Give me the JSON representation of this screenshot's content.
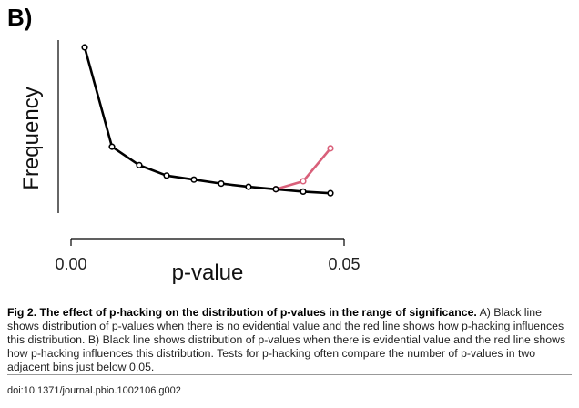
{
  "panel_label": "B)",
  "chart_data": {
    "type": "line",
    "title": "",
    "xlabel": "p-value",
    "ylabel": "Frequency",
    "x_ticks": [
      {
        "value": 0.0,
        "label": "0.00"
      },
      {
        "value": 0.05,
        "label": "0.05"
      }
    ],
    "xlim": [
      0.0,
      0.05
    ],
    "ylim": [
      0,
      1
    ],
    "grid": false,
    "series": [
      {
        "color": "#000000",
        "x": [
          0.0025,
          0.0075,
          0.0125,
          0.0175,
          0.0225,
          0.0275,
          0.0325,
          0.0375,
          0.0425,
          0.0475
        ],
        "y": [
          1.0,
          0.38,
          0.265,
          0.2,
          0.175,
          0.15,
          0.13,
          0.115,
          0.1,
          0.09
        ]
      },
      {
        "color": "#d9607a",
        "x": [
          0.0375,
          0.0425,
          0.0475
        ],
        "y": [
          0.115,
          0.165,
          0.37
        ]
      }
    ]
  },
  "caption": {
    "bold": "Fig 2. The effect of p-hacking on the distribution of p-values in the range of significance.",
    "text": " A) Black line shows distribution of p-values when there is no evidential value and the red line shows how p-hacking influences this distribution. B) Black line shows distribution of p-values when there is evidential value and the red line shows how p-hacking influences this distribution. Tests for p-hacking often compare the number of p-values in two adjacent bins just below 0.05."
  },
  "doi": "doi:10.1371/journal.pbio.1002106.g002"
}
